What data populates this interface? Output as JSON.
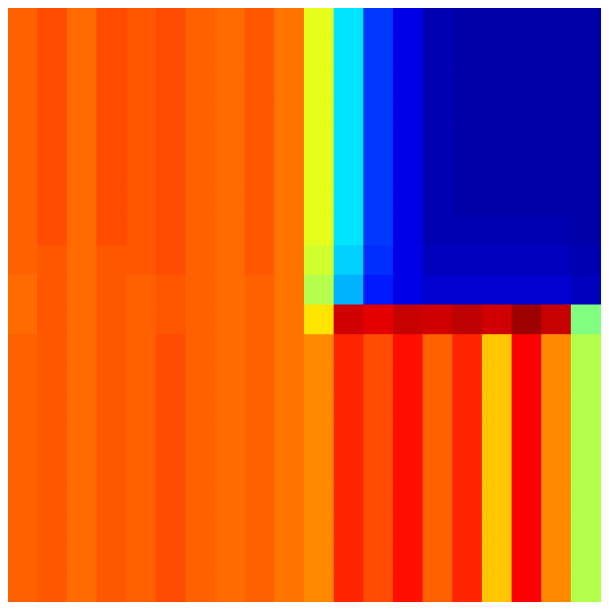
{
  "chart_data": {
    "type": "heatmap",
    "tick_labels": false,
    "zlim": [
      0,
      1
    ],
    "z": [
      [
        0.78,
        0.8,
        0.77,
        0.8,
        0.79,
        0.8,
        0.78,
        0.77,
        0.79,
        0.76,
        0.6,
        0.35,
        0.18,
        0.1,
        0.05,
        0.04,
        0.04,
        0.04,
        0.04,
        0.04
      ],
      [
        0.78,
        0.8,
        0.77,
        0.8,
        0.79,
        0.8,
        0.78,
        0.77,
        0.79,
        0.76,
        0.6,
        0.35,
        0.18,
        0.1,
        0.05,
        0.04,
        0.04,
        0.04,
        0.04,
        0.04
      ],
      [
        0.78,
        0.8,
        0.77,
        0.8,
        0.79,
        0.8,
        0.78,
        0.77,
        0.79,
        0.76,
        0.6,
        0.35,
        0.18,
        0.1,
        0.05,
        0.04,
        0.04,
        0.04,
        0.04,
        0.04
      ],
      [
        0.78,
        0.8,
        0.77,
        0.8,
        0.79,
        0.8,
        0.78,
        0.77,
        0.79,
        0.76,
        0.6,
        0.35,
        0.18,
        0.1,
        0.05,
        0.04,
        0.04,
        0.04,
        0.04,
        0.04
      ],
      [
        0.78,
        0.8,
        0.77,
        0.8,
        0.79,
        0.8,
        0.78,
        0.77,
        0.79,
        0.76,
        0.6,
        0.35,
        0.18,
        0.1,
        0.05,
        0.04,
        0.04,
        0.04,
        0.04,
        0.04
      ],
      [
        0.78,
        0.8,
        0.77,
        0.8,
        0.79,
        0.8,
        0.78,
        0.77,
        0.79,
        0.76,
        0.6,
        0.35,
        0.18,
        0.1,
        0.05,
        0.04,
        0.04,
        0.04,
        0.04,
        0.04
      ],
      [
        0.78,
        0.8,
        0.77,
        0.8,
        0.79,
        0.8,
        0.78,
        0.77,
        0.79,
        0.76,
        0.6,
        0.35,
        0.18,
        0.1,
        0.05,
        0.04,
        0.04,
        0.04,
        0.04,
        0.04
      ],
      [
        0.78,
        0.8,
        0.77,
        0.8,
        0.79,
        0.8,
        0.78,
        0.77,
        0.79,
        0.76,
        0.6,
        0.35,
        0.18,
        0.1,
        0.05,
        0.05,
        0.05,
        0.05,
        0.05,
        0.04
      ],
      [
        0.78,
        0.79,
        0.77,
        0.79,
        0.79,
        0.8,
        0.78,
        0.77,
        0.79,
        0.76,
        0.58,
        0.33,
        0.17,
        0.1,
        0.06,
        0.06,
        0.06,
        0.06,
        0.06,
        0.05
      ],
      [
        0.77,
        0.79,
        0.77,
        0.79,
        0.78,
        0.79,
        0.78,
        0.77,
        0.78,
        0.76,
        0.55,
        0.3,
        0.15,
        0.1,
        0.08,
        0.08,
        0.08,
        0.08,
        0.08,
        0.06
      ],
      [
        0.77,
        0.79,
        0.77,
        0.79,
        0.78,
        0.79,
        0.78,
        0.77,
        0.78,
        0.76,
        0.65,
        0.92,
        0.9,
        0.93,
        0.92,
        0.94,
        0.92,
        0.97,
        0.93,
        0.5
      ],
      [
        0.78,
        0.79,
        0.77,
        0.79,
        0.78,
        0.8,
        0.78,
        0.77,
        0.78,
        0.76,
        0.74,
        0.84,
        0.8,
        0.86,
        0.78,
        0.84,
        0.68,
        0.88,
        0.74,
        0.55
      ],
      [
        0.78,
        0.79,
        0.77,
        0.79,
        0.78,
        0.8,
        0.78,
        0.77,
        0.78,
        0.76,
        0.74,
        0.84,
        0.8,
        0.86,
        0.78,
        0.84,
        0.68,
        0.88,
        0.74,
        0.55
      ],
      [
        0.78,
        0.79,
        0.77,
        0.79,
        0.78,
        0.8,
        0.78,
        0.77,
        0.78,
        0.76,
        0.74,
        0.84,
        0.8,
        0.86,
        0.78,
        0.84,
        0.68,
        0.88,
        0.74,
        0.55
      ],
      [
        0.78,
        0.79,
        0.77,
        0.79,
        0.78,
        0.8,
        0.78,
        0.77,
        0.78,
        0.76,
        0.74,
        0.84,
        0.8,
        0.86,
        0.78,
        0.84,
        0.68,
        0.88,
        0.74,
        0.55
      ],
      [
        0.78,
        0.79,
        0.77,
        0.79,
        0.78,
        0.8,
        0.78,
        0.77,
        0.78,
        0.76,
        0.74,
        0.84,
        0.8,
        0.86,
        0.78,
        0.84,
        0.68,
        0.88,
        0.74,
        0.55
      ],
      [
        0.78,
        0.79,
        0.77,
        0.79,
        0.78,
        0.8,
        0.78,
        0.77,
        0.78,
        0.76,
        0.74,
        0.84,
        0.8,
        0.86,
        0.78,
        0.84,
        0.68,
        0.88,
        0.74,
        0.55
      ],
      [
        0.78,
        0.79,
        0.77,
        0.79,
        0.78,
        0.8,
        0.78,
        0.77,
        0.78,
        0.76,
        0.74,
        0.84,
        0.8,
        0.86,
        0.78,
        0.84,
        0.68,
        0.88,
        0.74,
        0.55
      ],
      [
        0.78,
        0.79,
        0.77,
        0.79,
        0.78,
        0.8,
        0.78,
        0.77,
        0.78,
        0.76,
        0.74,
        0.84,
        0.8,
        0.86,
        0.78,
        0.84,
        0.68,
        0.88,
        0.74,
        0.55
      ],
      [
        0.78,
        0.79,
        0.77,
        0.79,
        0.78,
        0.8,
        0.78,
        0.77,
        0.78,
        0.76,
        0.74,
        0.84,
        0.8,
        0.86,
        0.78,
        0.84,
        0.68,
        0.88,
        0.74,
        0.55
      ]
    ]
  }
}
